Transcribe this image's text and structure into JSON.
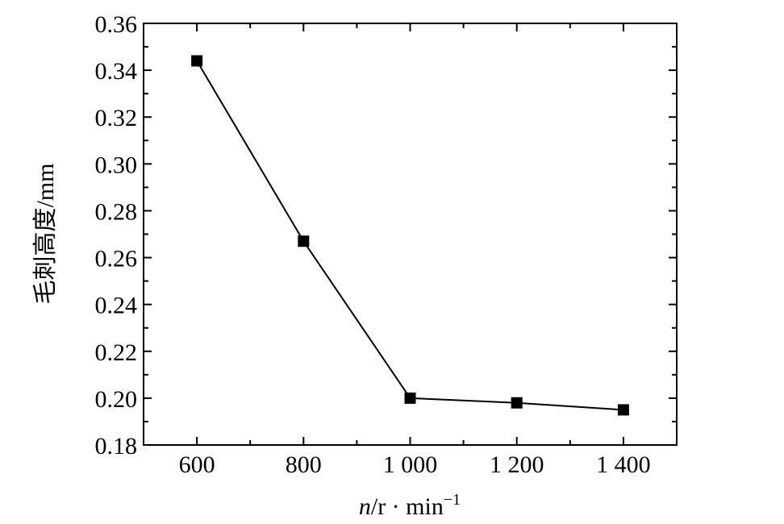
{
  "chart_data": {
    "type": "line",
    "title": "",
    "xlabel": {
      "var": "n",
      "unit_main": "/r · min",
      "unit_exp": "−1"
    },
    "ylabel": "毛刺高度/mm",
    "xlim": [
      500,
      1500
    ],
    "ylim": [
      0.18,
      0.36
    ],
    "x_ticks": [
      600,
      800,
      1000,
      1200,
      1400
    ],
    "x_tick_labels": [
      "600",
      "800",
      "1 000",
      "1 200",
      "1 400"
    ],
    "y_ticks": [
      0.18,
      0.2,
      0.22,
      0.24,
      0.26,
      0.28,
      0.3,
      0.32,
      0.34,
      0.36
    ],
    "y_tick_labels": [
      "0.18",
      "0.20",
      "0.22",
      "0.24",
      "0.26",
      "0.28",
      "0.30",
      "0.32",
      "0.34",
      "0.36"
    ],
    "grid": false,
    "marker": "square",
    "series": [
      {
        "x": [
          600,
          800,
          1000,
          1200,
          1400
        ],
        "y": [
          0.344,
          0.267,
          0.2,
          0.198,
          0.195
        ]
      }
    ],
    "colors": {
      "line": "#000000",
      "marker": "#000000",
      "axis": "#000000"
    }
  }
}
